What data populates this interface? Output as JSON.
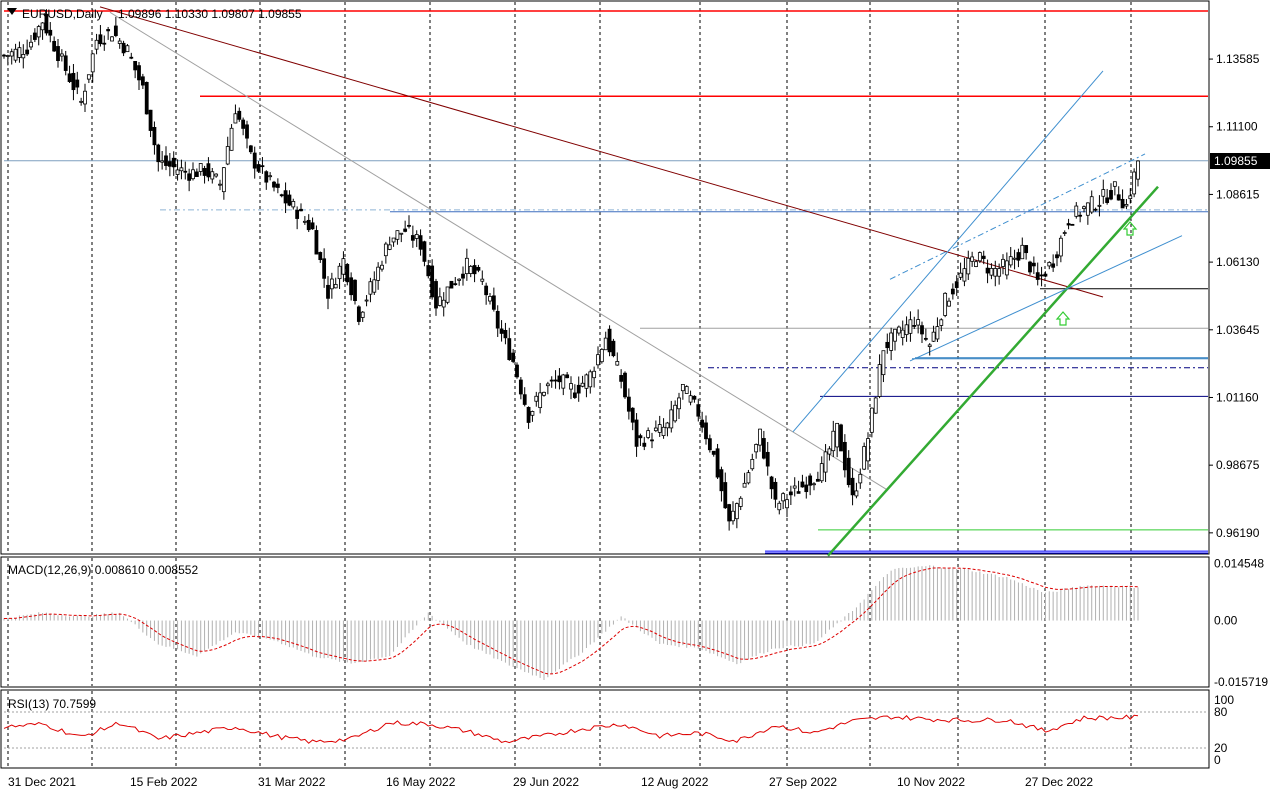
{
  "header": {
    "symbol": "EURUSD,Daily",
    "ohlc": "1.09896 1.10330 1.09807 1.09855"
  },
  "chart_data": {
    "type": "candlestick",
    "ylim": [
      0.9545,
      1.1568
    ],
    "price_ticks": [
      "1.13585",
      "1.11100",
      "1.08615",
      "1.06130",
      "1.03645",
      "1.01160",
      "0.98675",
      "0.96190"
    ],
    "current_price": "1.09855",
    "date_labels": [
      "31 Dec 2021",
      "15 Feb 2022",
      "31 Mar 2022",
      "16 May 2022",
      "29 Jun 2022",
      "12 Aug 2022",
      "27 Sep 2022",
      "10 Nov 2022",
      "27 Dec 2022"
    ],
    "close_path": [
      [
        0,
        1.137
      ],
      [
        6,
        1.14
      ],
      [
        10,
        1.15
      ],
      [
        15,
        1.135
      ],
      [
        20,
        1.12
      ],
      [
        24,
        1.143
      ],
      [
        28,
        1.146
      ],
      [
        32,
        1.139
      ],
      [
        36,
        1.125
      ],
      [
        40,
        1.098
      ],
      [
        44,
        1.096
      ],
      [
        48,
        1.094
      ],
      [
        52,
        1.095
      ],
      [
        56,
        1.09
      ],
      [
        60,
        1.118
      ],
      [
        64,
        1.1
      ],
      [
        68,
        1.092
      ],
      [
        72,
        1.085
      ],
      [
        76,
        1.08
      ],
      [
        80,
        1.073
      ],
      [
        84,
        1.05
      ],
      [
        88,
        1.062
      ],
      [
        92,
        1.042
      ],
      [
        96,
        1.055
      ],
      [
        100,
        1.07
      ],
      [
        104,
        1.073
      ],
      [
        108,
        1.068
      ],
      [
        112,
        1.046
      ],
      [
        116,
        1.053
      ],
      [
        120,
        1.06
      ],
      [
        124,
        1.054
      ],
      [
        128,
        1.038
      ],
      [
        132,
        1.025
      ],
      [
        136,
        1.005
      ],
      [
        140,
        1.015
      ],
      [
        144,
        1.018
      ],
      [
        148,
        1.014
      ],
      [
        152,
        1.02
      ],
      [
        156,
        1.034
      ],
      [
        160,
        1.018
      ],
      [
        164,
        0.995
      ],
      [
        168,
        0.998
      ],
      [
        172,
        1.001
      ],
      [
        176,
        1.015
      ],
      [
        180,
        1.006
      ],
      [
        184,
        0.99
      ],
      [
        188,
        0.965
      ],
      [
        192,
        0.98
      ],
      [
        196,
        0.998
      ],
      [
        200,
        0.972
      ],
      [
        204,
        0.976
      ],
      [
        208,
        0.98
      ],
      [
        212,
        0.985
      ],
      [
        216,
        1.0
      ],
      [
        220,
        0.974
      ],
      [
        224,
        0.997
      ],
      [
        228,
        1.03
      ],
      [
        232,
        1.035
      ],
      [
        236,
        1.04
      ],
      [
        240,
        1.031
      ],
      [
        244,
        1.047
      ],
      [
        248,
        1.056
      ],
      [
        252,
        1.064
      ],
      [
        256,
        1.058
      ],
      [
        260,
        1.06
      ],
      [
        264,
        1.066
      ],
      [
        268,
        1.054
      ],
      [
        272,
        1.062
      ],
      [
        276,
        1.077
      ],
      [
        280,
        1.081
      ],
      [
        284,
        1.084
      ],
      [
        288,
        1.088
      ],
      [
        291,
        1.082
      ],
      [
        294,
        1.0985
      ]
    ],
    "levels": [
      {
        "price": 1.1535,
        "color": "#ff0000"
      },
      {
        "price": 1.1222,
        "color": "#ff0000"
      },
      {
        "price": 1.0985,
        "color": "#7f9fbf"
      },
      {
        "price": 1.0798,
        "color": "#3f6fbf"
      },
      {
        "price": 1.0515,
        "color": "#000000"
      },
      {
        "price": 1.037,
        "color": "#a0a0a0"
      },
      {
        "price": 1.0262,
        "color": "#2f7fbf"
      },
      {
        "price": 1.0225,
        "color": "#000080"
      },
      {
        "price": 1.012,
        "color": "#000080"
      },
      {
        "price": 0.963,
        "color": "#33cc33"
      },
      {
        "price": 0.9545,
        "color": "#0000ff"
      }
    ],
    "macd": {
      "label": "MACD(12,26,9) 0.008610 0.008552",
      "ticks": [
        "0.014548",
        "0.00",
        "-0.015719"
      ],
      "range": [
        -0.0165,
        0.0155
      ],
      "points": [
        [
          0,
          0.0005
        ],
        [
          10,
          0.002
        ],
        [
          20,
          0.001
        ],
        [
          30,
          0.002
        ],
        [
          40,
          -0.006
        ],
        [
          50,
          -0.009
        ],
        [
          60,
          -0.003
        ],
        [
          70,
          -0.005
        ],
        [
          80,
          -0.009
        ],
        [
          90,
          -0.011
        ],
        [
          100,
          -0.009
        ],
        [
          110,
          0.002
        ],
        [
          120,
          -0.006
        ],
        [
          130,
          -0.011
        ],
        [
          140,
          -0.015
        ],
        [
          150,
          -0.008
        ],
        [
          160,
          0.001
        ],
        [
          170,
          -0.006
        ],
        [
          180,
          -0.007
        ],
        [
          190,
          -0.011
        ],
        [
          200,
          -0.007
        ],
        [
          210,
          -0.006
        ],
        [
          220,
          0.0025
        ],
        [
          230,
          0.013
        ],
        [
          240,
          0.014
        ],
        [
          250,
          0.013
        ],
        [
          260,
          0.011
        ],
        [
          270,
          0.007
        ],
        [
          280,
          0.009
        ],
        [
          294,
          0.0086
        ]
      ]
    },
    "rsi": {
      "label": "RSI(13) 70.7599",
      "ticks": [
        "100",
        "80",
        "20",
        "0"
      ],
      "points": [
        [
          0,
          55
        ],
        [
          10,
          60
        ],
        [
          20,
          38
        ],
        [
          30,
          62
        ],
        [
          40,
          35
        ],
        [
          50,
          45
        ],
        [
          60,
          55
        ],
        [
          70,
          40
        ],
        [
          80,
          30
        ],
        [
          90,
          35
        ],
        [
          100,
          62
        ],
        [
          110,
          60
        ],
        [
          120,
          48
        ],
        [
          130,
          30
        ],
        [
          140,
          40
        ],
        [
          150,
          52
        ],
        [
          160,
          60
        ],
        [
          170,
          40
        ],
        [
          180,
          45
        ],
        [
          190,
          32
        ],
        [
          200,
          58
        ],
        [
          210,
          45
        ],
        [
          220,
          65
        ],
        [
          230,
          72
        ],
        [
          240,
          68
        ],
        [
          250,
          66
        ],
        [
          260,
          67
        ],
        [
          270,
          48
        ],
        [
          280,
          70
        ],
        [
          294,
          71
        ]
      ]
    }
  }
}
